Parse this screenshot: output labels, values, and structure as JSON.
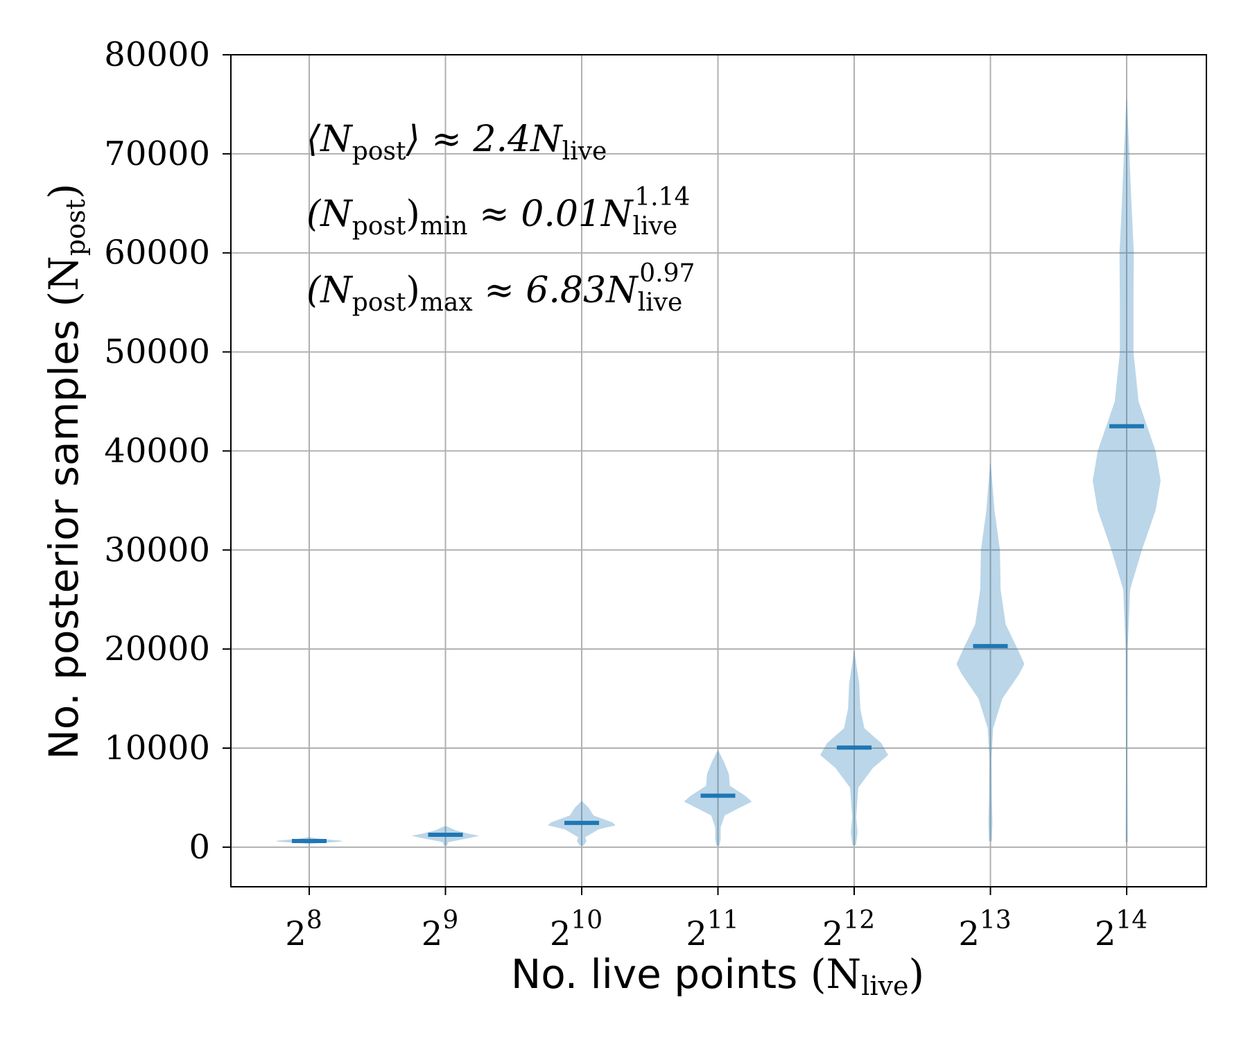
{
  "chart_data": {
    "type": "violin",
    "xlabel": "No. live points",
    "xlabel_symbol": "N",
    "xlabel_sub": "live",
    "ylabel": "No. posterior samples",
    "ylabel_symbol": "N",
    "ylabel_sub": "post",
    "ylim": [
      -4000,
      80000
    ],
    "yticks": [
      0,
      10000,
      20000,
      30000,
      40000,
      50000,
      60000,
      70000,
      80000
    ],
    "grid": true,
    "colors": {
      "violin": "#1f77b4",
      "median": "#1f77b4",
      "grid": "#b0b0b0"
    },
    "x_tick_base": "2",
    "x_categories": [
      "8",
      "9",
      "10",
      "11",
      "12",
      "13",
      "14"
    ],
    "violins": [
      {
        "exponent": "8",
        "median": 620,
        "min": 350,
        "max": 1000,
        "profile": [
          [
            350,
            0.05
          ],
          [
            550,
            0.9
          ],
          [
            620,
            1.0
          ],
          [
            700,
            0.8
          ],
          [
            850,
            0.3
          ],
          [
            1000,
            0.03
          ]
        ]
      },
      {
        "exponent": "9",
        "median": 1250,
        "min": 150,
        "max": 2100,
        "profile": [
          [
            150,
            0.04
          ],
          [
            500,
            0.08
          ],
          [
            1000,
            0.8
          ],
          [
            1150,
            1.0
          ],
          [
            1350,
            0.7
          ],
          [
            1700,
            0.3
          ],
          [
            2100,
            0.04
          ]
        ]
      },
      {
        "exponent": "10",
        "median": 2450,
        "min": 150,
        "max": 4600,
        "profile": [
          [
            150,
            0.05
          ],
          [
            600,
            0.14
          ],
          [
            1000,
            0.1
          ],
          [
            1800,
            0.5
          ],
          [
            2200,
            1.0
          ],
          [
            2500,
            0.9
          ],
          [
            3200,
            0.35
          ],
          [
            4000,
            0.2
          ],
          [
            4600,
            0.02
          ]
        ]
      },
      {
        "exponent": "11",
        "median": 5200,
        "min": 150,
        "max": 9700,
        "profile": [
          [
            150,
            0.04
          ],
          [
            800,
            0.08
          ],
          [
            2000,
            0.08
          ],
          [
            3200,
            0.2
          ],
          [
            4000,
            0.65
          ],
          [
            4600,
            1.0
          ],
          [
            5200,
            0.8
          ],
          [
            6200,
            0.35
          ],
          [
            7400,
            0.32
          ],
          [
            8600,
            0.18
          ],
          [
            9700,
            0.02
          ]
        ]
      },
      {
        "exponent": "12",
        "median": 10050,
        "min": 200,
        "max": 19800,
        "profile": [
          [
            200,
            0.05
          ],
          [
            1500,
            0.1
          ],
          [
            3000,
            0.06
          ],
          [
            6000,
            0.12
          ],
          [
            8000,
            0.55
          ],
          [
            9300,
            1.0
          ],
          [
            10500,
            0.8
          ],
          [
            12000,
            0.3
          ],
          [
            14000,
            0.18
          ],
          [
            16500,
            0.15
          ],
          [
            18500,
            0.06
          ],
          [
            19800,
            0.01
          ]
        ]
      },
      {
        "exponent": "13",
        "median": 20300,
        "min": 600,
        "max": 38700,
        "profile": [
          [
            600,
            0.04
          ],
          [
            2500,
            0.06
          ],
          [
            5000,
            0.04
          ],
          [
            9000,
            0.03
          ],
          [
            12000,
            0.08
          ],
          [
            15000,
            0.35
          ],
          [
            17500,
            0.85
          ],
          [
            18500,
            1.0
          ],
          [
            20000,
            0.8
          ],
          [
            22500,
            0.45
          ],
          [
            26000,
            0.3
          ],
          [
            30000,
            0.28
          ],
          [
            34000,
            0.12
          ],
          [
            38700,
            0.01
          ]
        ]
      },
      {
        "exponent": "14",
        "median": 42500,
        "min": 500,
        "max": 75500,
        "profile": [
          [
            500,
            0.03
          ],
          [
            8000,
            0.02
          ],
          [
            20000,
            0.03
          ],
          [
            26000,
            0.1
          ],
          [
            30000,
            0.45
          ],
          [
            34000,
            0.85
          ],
          [
            37000,
            1.0
          ],
          [
            40000,
            0.85
          ],
          [
            45000,
            0.35
          ],
          [
            50000,
            0.2
          ],
          [
            55000,
            0.2
          ],
          [
            60000,
            0.21
          ],
          [
            65000,
            0.14
          ],
          [
            70000,
            0.08
          ],
          [
            75500,
            0.01
          ]
        ]
      }
    ],
    "annotations": [
      {
        "name": "mean",
        "open": "⟨N",
        "sub1": "post",
        "close": "⟩ ≈ 2.4N",
        "sub2": "live",
        "sup2": ""
      },
      {
        "name": "min",
        "open": "(N",
        "sub1": "post",
        "close": ")",
        "sub_close": "min",
        "tail": " ≈ 0.01N",
        "sub2": "live",
        "sup2": "1.14"
      },
      {
        "name": "max",
        "open": "(N",
        "sub1": "post",
        "close": ")",
        "sub_close": "max",
        "tail": " ≈ 6.83N",
        "sub2": "live",
        "sup2": "0.97"
      }
    ]
  }
}
